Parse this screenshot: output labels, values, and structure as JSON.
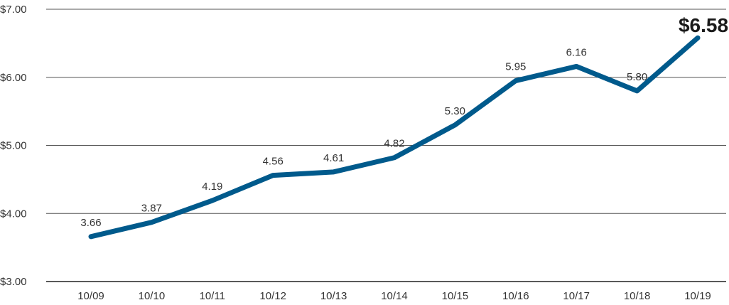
{
  "chart_data": {
    "type": "line",
    "title": "",
    "xlabel": "",
    "ylabel": "",
    "categories": [
      "10/09",
      "10/10",
      "10/11",
      "10/12",
      "10/13",
      "10/14",
      "10/15",
      "10/16",
      "10/17",
      "10/18",
      "10/19"
    ],
    "series": [
      {
        "values": [
          3.66,
          3.87,
          4.19,
          4.56,
          4.61,
          4.82,
          5.3,
          5.95,
          6.16,
          5.8,
          6.58
        ],
        "color": "#005a8c"
      }
    ],
    "data_labels": [
      "3.66",
      "3.87",
      "4.19",
      "4.56",
      "4.61",
      "4.82",
      "5.30",
      "5.95",
      "6.16",
      "5.80",
      "$6.58"
    ],
    "highlight_index": 10,
    "ylim": [
      3.0,
      7.0
    ],
    "yticks": [
      3.0,
      4.0,
      5.0,
      6.0,
      7.0
    ],
    "ytick_labels": [
      "$3.00",
      "$4.00",
      "$5.00",
      "$6.00",
      "$7.00"
    ],
    "grid": "horizontal",
    "legend": "none"
  }
}
